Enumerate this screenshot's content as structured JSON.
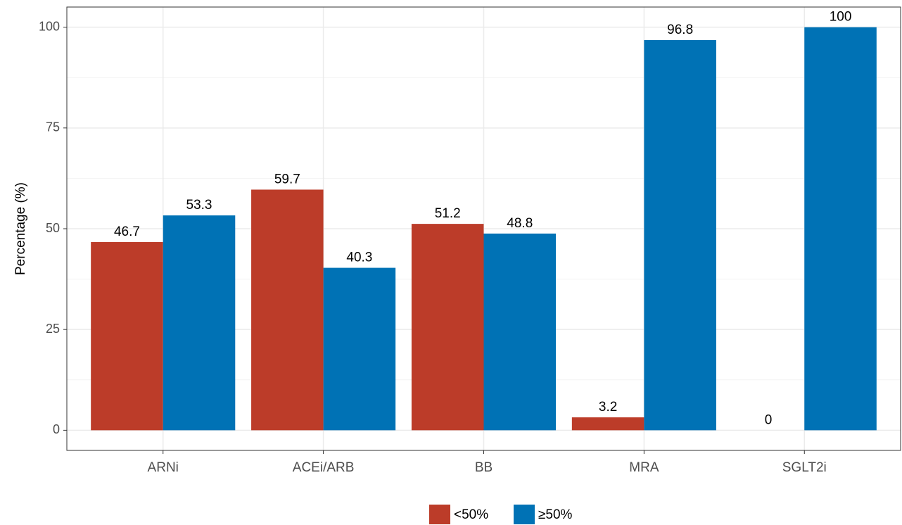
{
  "chart_data": {
    "type": "bar",
    "y_label": "Percentage (%)",
    "categories": [
      "ARNi",
      "ACEi/ARB",
      "BB",
      "MRA",
      "SGLT2i"
    ],
    "series": [
      {
        "name": "<50%",
        "color": "#bc3c29",
        "values": [
          46.7,
          59.7,
          51.2,
          3.2,
          0
        ]
      },
      {
        "name": "≥50%",
        "color": "#0072b5",
        "values": [
          53.3,
          40.3,
          48.8,
          96.8,
          100
        ]
      }
    ],
    "ylim": [
      -5,
      105
    ],
    "yticks": [
      0,
      25,
      50,
      75,
      100
    ],
    "minor_yticks": [
      12.5,
      37.5,
      62.5,
      87.5
    ],
    "grid": true,
    "legend": "bottom"
  }
}
